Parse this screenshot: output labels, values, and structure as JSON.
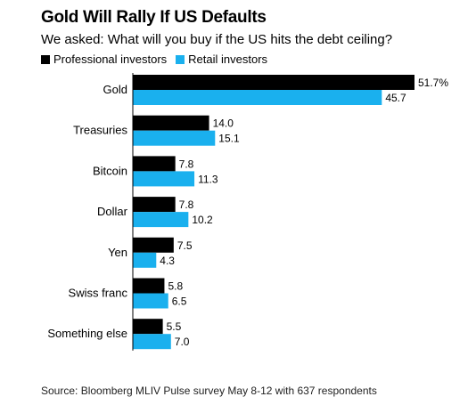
{
  "chart_data": {
    "type": "bar",
    "orientation": "horizontal",
    "title": "Gold Will Rally If US Defaults",
    "subtitle": "We asked: What will you buy if the US hits the debt ceiling?",
    "categories": [
      "Gold",
      "Treasuries",
      "Bitcoin",
      "Dollar",
      "Yen",
      "Swiss franc",
      "Something else"
    ],
    "series": [
      {
        "name": "Professional investors",
        "color": "#000000",
        "values": [
          51.7,
          14.0,
          7.8,
          7.8,
          7.5,
          5.8,
          5.5
        ],
        "labels": [
          "51.7%",
          "14.0",
          "7.8",
          "7.8",
          "7.5",
          "5.8",
          "5.5"
        ]
      },
      {
        "name": "Retail investors",
        "color": "#1ab0ee",
        "values": [
          45.7,
          15.1,
          11.3,
          10.2,
          4.3,
          6.5,
          7.0
        ],
        "labels": [
          "45.7",
          "15.1",
          "11.3",
          "10.2",
          "4.3",
          "6.5",
          "7.0"
        ]
      }
    ],
    "xlim": [
      0,
      51.7
    ],
    "grid": false,
    "legend": "top-left",
    "source": "Source: Bloomberg MLIV Pulse survey May 8-12 with 637 respondents"
  }
}
